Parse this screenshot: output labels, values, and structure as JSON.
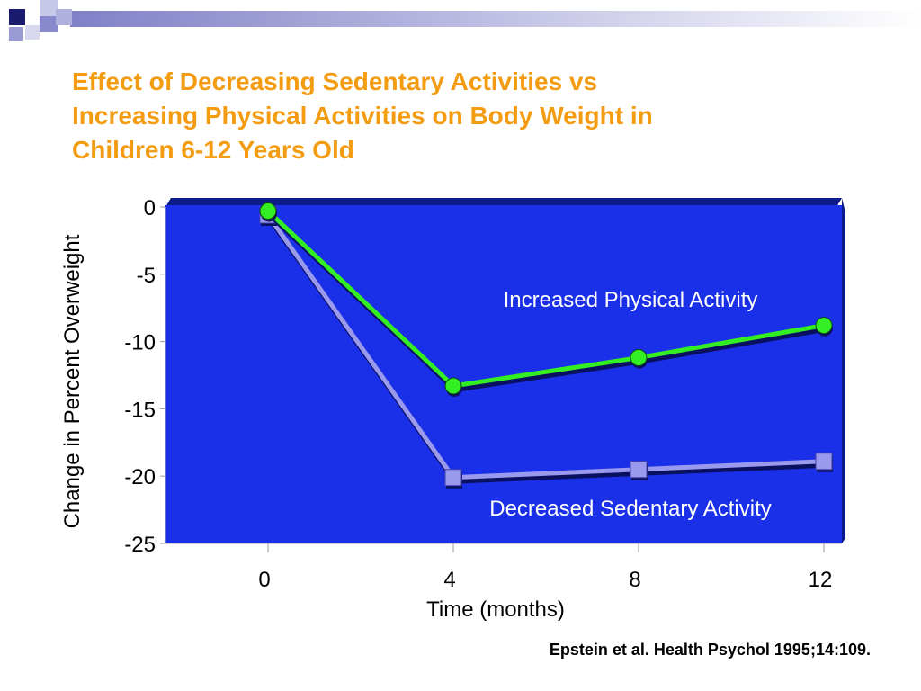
{
  "slide": {
    "title_lines": [
      "Effect of Decreasing Sedentary Activities vs",
      "Increasing Physical Activities on Body Weight in",
      "Children 6-12 Years Old"
    ],
    "citation": "Epstein et al. Health Psychol 1995;14:109."
  },
  "colors": {
    "title": "#f39c12",
    "plot_background": "#1a2fe8",
    "plot_side": "#0d1a8a",
    "increased_series": "#33ee22",
    "decreased_series": "#9999ee",
    "annotation_text": "#ffffff"
  },
  "chart_data": {
    "type": "line",
    "xlabel": "Time (months)",
    "ylabel": "Change in Percent Overweight",
    "x": [
      0,
      4,
      8,
      12
    ],
    "x_tick_labels": [
      "0",
      "4",
      "8",
      "12"
    ],
    "y_ticks": [
      0,
      -5,
      -10,
      -15,
      -20,
      -25
    ],
    "y_tick_labels": [
      "0",
      "-5",
      "-10",
      "-15",
      "-20",
      "-25"
    ],
    "ylim": [
      -25,
      0
    ],
    "grid": false,
    "legend": "none (series labeled inside plot)",
    "series": [
      {
        "name": "Increased Physical Activity",
        "marker": "circle",
        "values": [
          -0.3,
          -13.3,
          -11.2,
          -8.8
        ]
      },
      {
        "name": "Decreased Sedentary Activity",
        "marker": "square",
        "values": [
          -0.6,
          -20.1,
          -19.5,
          -18.9
        ]
      }
    ]
  }
}
